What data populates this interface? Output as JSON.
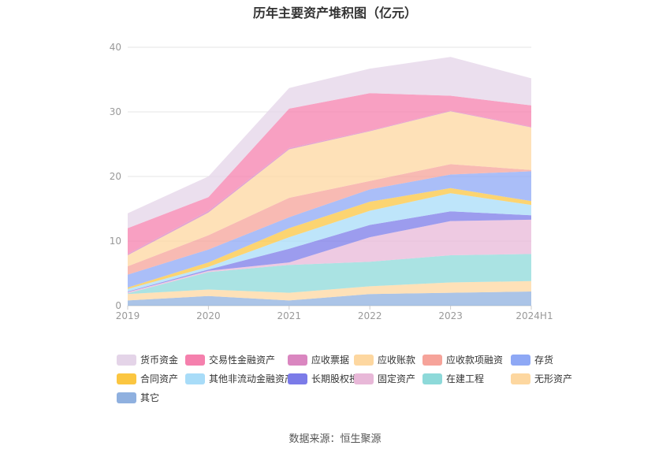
{
  "chart_data": {
    "type": "area",
    "stacked": true,
    "title": "历年主要资产堆积图（亿元）",
    "xlabel": "",
    "ylabel": "",
    "x": [
      "2019",
      "2020",
      "2021",
      "2022",
      "2023",
      "2024H1"
    ],
    "ylim": [
      0,
      40
    ],
    "yticks": [
      0,
      10,
      20,
      30,
      40
    ],
    "grid": true,
    "legend_position": "bottom",
    "series": [
      {
        "name": "其它",
        "color": "#8fb0df",
        "values": [
          0.8,
          1.5,
          0.8,
          1.8,
          2.0,
          2.2
        ]
      },
      {
        "name": "无形资产",
        "color": "#fdd7a0",
        "values": [
          1.0,
          1.0,
          1.2,
          1.2,
          1.6,
          1.6
        ]
      },
      {
        "name": "在建工程",
        "color": "#8dd9d9",
        "values": [
          0.1,
          2.7,
          4.3,
          3.8,
          4.2,
          4.2
        ]
      },
      {
        "name": "固定资产",
        "color": "#e8b8d8",
        "values": [
          0.2,
          0.2,
          0.4,
          3.8,
          5.3,
          5.3
        ]
      },
      {
        "name": "长期股权投资",
        "color": "#7b7be8",
        "values": [
          0.1,
          0.2,
          2.1,
          1.9,
          1.5,
          0.7
        ]
      },
      {
        "name": "其他非流动金融资产",
        "color": "#a8dcf8",
        "values": [
          0.4,
          0.4,
          1.8,
          2.2,
          2.8,
          1.6
        ]
      },
      {
        "name": "合同资产",
        "color": "#fbc641",
        "values": [
          0.2,
          0.7,
          1.4,
          1.4,
          0.8,
          0.6
        ]
      },
      {
        "name": "存货",
        "color": "#8ea8f5",
        "values": [
          2.0,
          2.0,
          1.7,
          1.9,
          2.1,
          4.6
        ]
      },
      {
        "name": "应收款项融资",
        "color": "#f6a39a",
        "values": [
          1.3,
          2.2,
          3.0,
          1.3,
          1.6,
          0.2
        ]
      },
      {
        "name": "应收账款",
        "color": "#fdd7a0",
        "values": [
          1.7,
          3.5,
          7.5,
          7.7,
          8.2,
          6.6
        ]
      },
      {
        "name": "应收票据",
        "color": "#da86c0",
        "values": [
          0.2,
          0.3,
          0.2,
          0.1,
          0.1,
          0.1
        ]
      },
      {
        "name": "交易性金融资产",
        "color": "#f580ad",
        "values": [
          4.0,
          2.1,
          6.1,
          5.8,
          2.3,
          3.3
        ]
      },
      {
        "name": "货币资金",
        "color": "#e4d4e8",
        "values": [
          2.3,
          3.2,
          3.2,
          3.8,
          6.0,
          4.2
        ]
      }
    ],
    "legend_order": [
      "货币资金",
      "交易性金融资产",
      "应收票据",
      "应收账款",
      "应收款项融资",
      "存货",
      "合同资产",
      "其他非流动金融资产",
      "长期股权投资",
      "固定资产",
      "在建工程",
      "无形资产",
      "其它"
    ]
  },
  "footer": {
    "source": "数据来源：恒生聚源"
  }
}
